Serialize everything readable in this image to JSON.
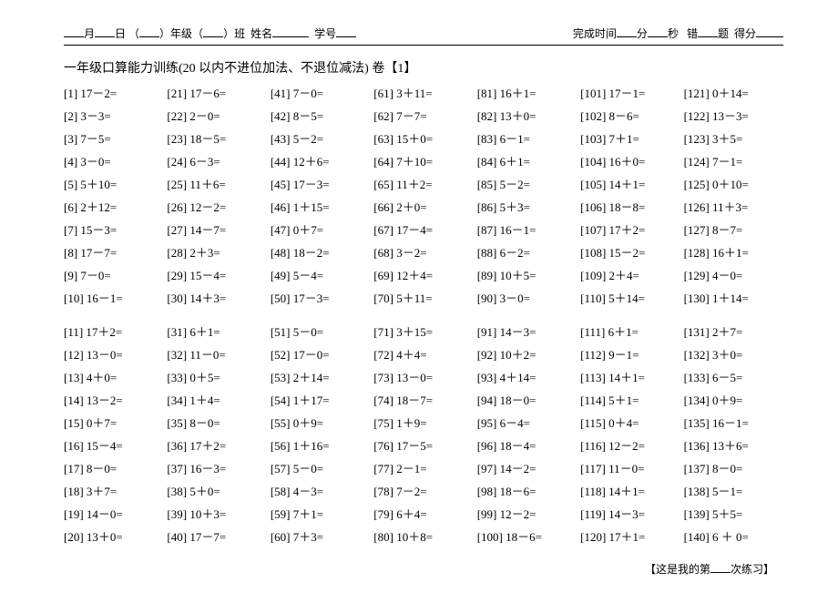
{
  "header": {
    "month_label": "月",
    "day_label": "日",
    "grade_open": "（",
    "grade_close": "）年级（",
    "class_close": "）班",
    "name_label": "姓名",
    "id_label": "学号",
    "time_label": "完成时间",
    "min_label": "分",
    "sec_label": "秒",
    "wrong_label": "错",
    "wrong_unit": "题",
    "score_label": "得分"
  },
  "title": "一年级口算能力训练(20 以内不进位加法、不退位减法) 卷【1】",
  "problems_block1": [
    "[1] 17－2=",
    "[2] 3－3=",
    "[3] 7－5=",
    "[4] 3－0=",
    "[5] 5＋10=",
    "[6] 2＋12=",
    "[7] 15－3=",
    "[8] 17－7=",
    "[9] 7－0=",
    "[10] 16－1=",
    "[21] 17－6=",
    "[22] 2－0=",
    "[23] 18－5=",
    "[24] 6－3=",
    "[25] 11＋6=",
    "[26] 12－2=",
    "[27] 14－7=",
    "[28] 2＋3=",
    "[29] 15－4=",
    "[30] 14＋3=",
    "[41] 7－0=",
    "[42] 8－5=",
    "[43] 5－2=",
    "[44] 12＋6=",
    "[45] 17－3=",
    "[46] 1＋15=",
    "[47] 0＋7=",
    "[48] 18－2=",
    "[49] 5－4=",
    "[50] 17－3=",
    "[61] 3＋11=",
    "[62] 7－7=",
    "[63] 15＋0=",
    "[64] 7＋10=",
    "[65] 11＋2=",
    "[66] 2＋0=",
    "[67] 17－4=",
    "[68] 3－2=",
    "[69] 12＋4=",
    "[70] 5＋11=",
    "[81] 16＋1=",
    "[82] 13＋0=",
    "[83] 6－1=",
    "[84] 6＋1=",
    "[85] 5－2=",
    "[86] 5＋3=",
    "[87] 16－1=",
    "[88] 6－2=",
    "[89] 10＋5=",
    "[90] 3－0=",
    "[101] 17－1=",
    "[102] 8－6=",
    "[103] 7＋1=",
    "[104] 16＋0=",
    "[105] 14＋1=",
    "[106] 18－8=",
    "[107] 17＋2=",
    "[108] 15－2=",
    "[109] 2＋4=",
    "[110] 5＋14=",
    "[121] 0＋14=",
    "[122] 13－3=",
    "[123] 3＋5=",
    "[124] 7－1=",
    "[125] 0＋10=",
    "[126] 11＋3=",
    "[127] 8－7=",
    "[128] 16＋1=",
    "[129] 4－0=",
    "[130] 1＋14="
  ],
  "problems_block2": [
    "[11] 17＋2=",
    "[12] 13－0=",
    "[13] 4＋0=",
    "[14] 13－2=",
    "[15] 0＋7=",
    "[16] 15－4=",
    "[17] 8－0=",
    "[18] 3＋7=",
    "[19] 14－0=",
    "[20] 13＋0=",
    "[31] 6＋1=",
    "[32] 11－0=",
    "[33] 0＋5=",
    "[34] 1＋4=",
    "[35] 8－0=",
    "[36] 17＋2=",
    "[37] 16－3=",
    "[38] 5＋0=",
    "[39] 10＋3=",
    "[40] 17－7=",
    "[51] 5－0=",
    "[52] 17－0=",
    "[53] 2＋14=",
    "[54] 1＋17=",
    "[55] 0＋9=",
    "[56] 1＋16=",
    "[57] 5－0=",
    "[58] 4－3=",
    "[59] 7＋1=",
    "[60] 7＋3=",
    "[71] 3＋15=",
    "[72] 4＋4=",
    "[73] 13－0=",
    "[74] 18－7=",
    "[75] 1＋9=",
    "[76] 17－5=",
    "[77] 2－1=",
    "[78] 7－2=",
    "[79] 6＋4=",
    "[80] 10＋8=",
    "[91] 14－3=",
    "[92] 10＋2=",
    "[93] 4＋14=",
    "[94] 18－0=",
    "[95] 6－4=",
    "[96] 18－4=",
    "[97] 14－2=",
    "[98] 18－6=",
    "[99] 12－2=",
    "[100] 18－6=",
    "[111] 6＋1=",
    "[112] 9－1=",
    "[113] 14＋1=",
    "[114] 5＋1=",
    "[115] 0＋4=",
    "[116] 12－2=",
    "[117] 11－0=",
    "[118] 14＋1=",
    "[119] 14－3=",
    "[120] 17＋1=",
    "[131] 2＋7=",
    "[132] 3＋0=",
    "[133] 6－5=",
    "[134] 0＋9=",
    "[135] 16－1=",
    "[136] 13＋6=",
    "[137] 8－0=",
    "[138] 5－1=",
    "[139] 5＋5=",
    "[140] 6 ＋ 0="
  ],
  "footer": {
    "prefix": "【这是我的第",
    "suffix": "次练习】"
  }
}
